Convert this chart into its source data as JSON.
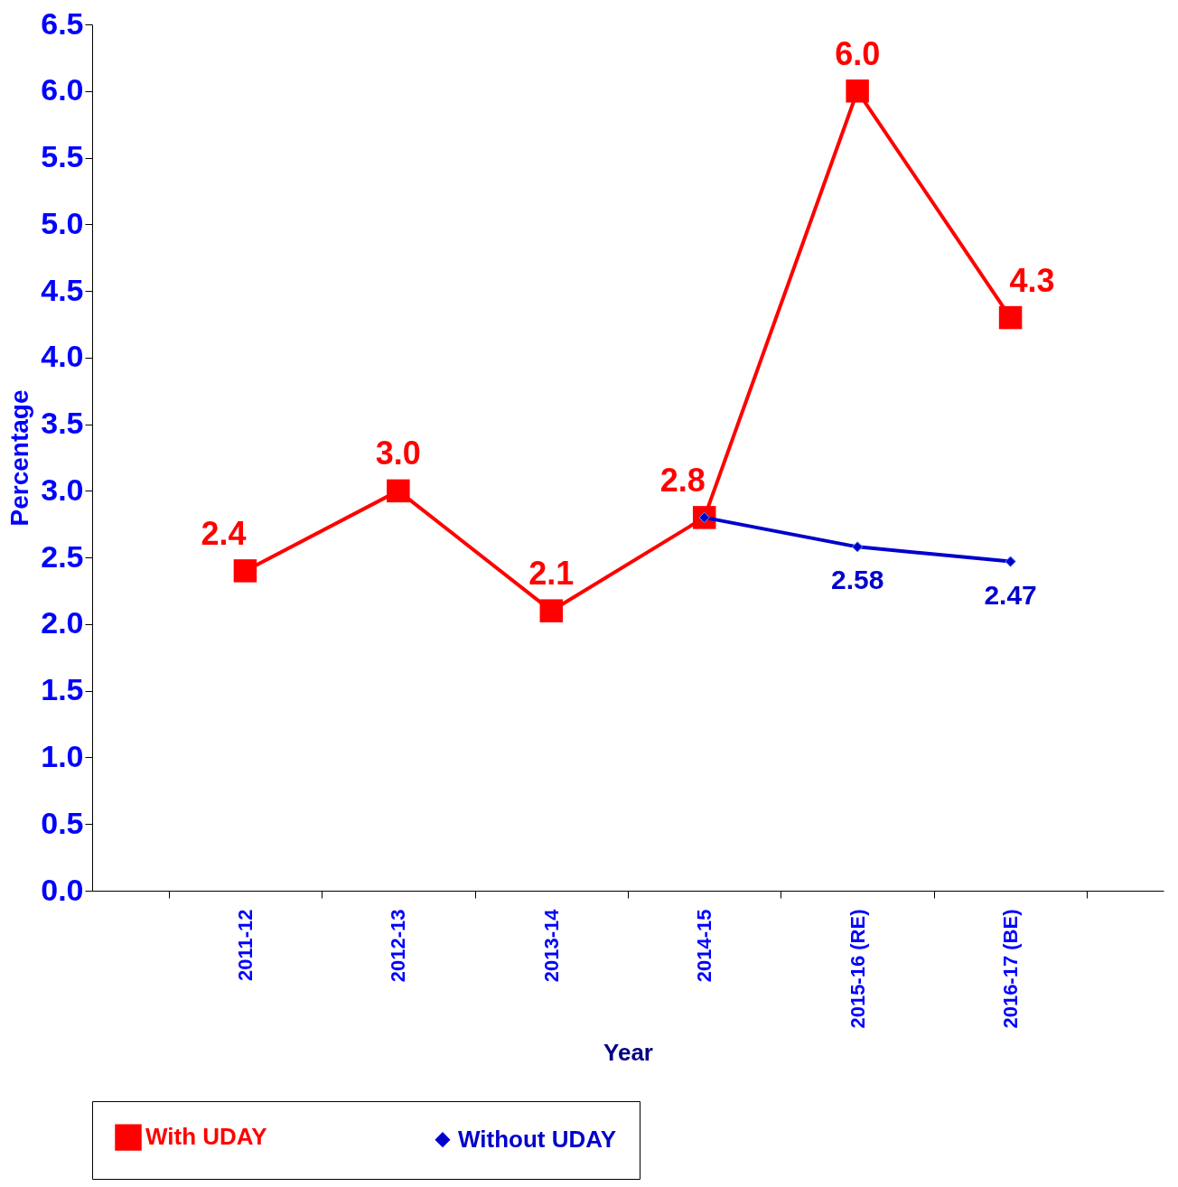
{
  "chart_data": {
    "type": "line",
    "xlabel": "Year",
    "ylabel": "Percentage",
    "categories": [
      "2011-12",
      "2012-13",
      "2013-14",
      "2014-15",
      "2015-16 (RE)",
      "2016-17 (BE)"
    ],
    "ylim": [
      0,
      6.5
    ],
    "yticks": [
      {
        "value": 0,
        "label": "0.0"
      },
      0.5,
      {
        "value": 1,
        "label": "1.0"
      },
      1.5,
      {
        "value": 2,
        "label": "2.0"
      },
      2.5,
      {
        "value": 3,
        "label": "3.0"
      },
      3.5,
      {
        "value": 4,
        "label": "4.0"
      },
      4.5,
      {
        "value": 5,
        "label": "5.0"
      },
      5.5,
      {
        "value": 6,
        "label": "6.0"
      },
      6.5
    ],
    "grid": false,
    "legend": "bottom",
    "series": [
      {
        "name": "With UDAY",
        "color": "#ff0000",
        "marker": "square",
        "values": [
          2.4,
          3.0,
          2.1,
          2.8,
          6.0,
          4.3
        ],
        "value_labels": [
          "2.4",
          "3.0",
          "2.1",
          "2.8",
          "6.0",
          "4.3"
        ]
      },
      {
        "name": "Without UDAY",
        "color": "#0000cc",
        "marker": "diamond",
        "values": [
          null,
          null,
          null,
          2.8,
          2.58,
          2.47
        ],
        "value_labels": [
          null,
          null,
          null,
          null,
          "2.58",
          "2.47"
        ]
      }
    ]
  }
}
